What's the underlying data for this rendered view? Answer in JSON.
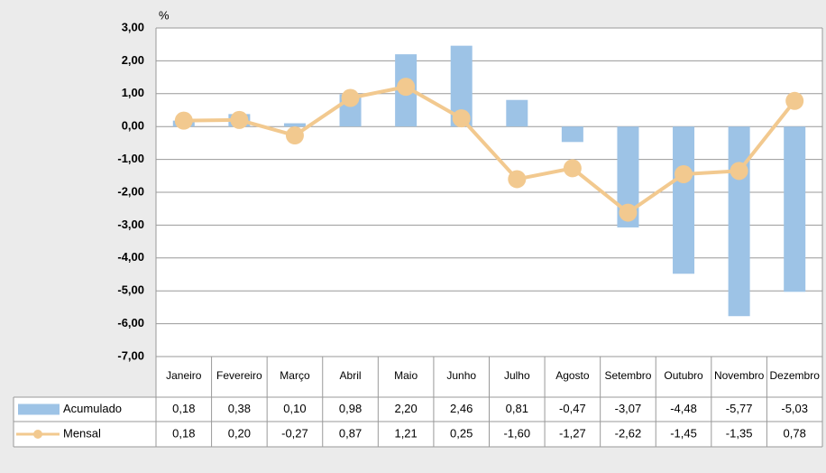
{
  "chart_data": {
    "type": "combo",
    "y_label": "%",
    "categories": [
      "Janeiro",
      "Fevereiro",
      "Março",
      "Abril",
      "Maio",
      "Junho",
      "Julho",
      "Agosto",
      "Setembro",
      "Outubro",
      "Novembro",
      "Dezembro"
    ],
    "series": [
      {
        "name": "Acumulado",
        "type": "bar",
        "color": "#9dc3e6",
        "values": [
          0.18,
          0.38,
          0.1,
          0.98,
          2.2,
          2.46,
          0.81,
          -0.47,
          -3.07,
          -4.48,
          -5.77,
          -5.03
        ],
        "value_labels": [
          "0,18",
          "0,38",
          "0,10",
          "0,98",
          "2,20",
          "2,46",
          "0,81",
          "-0,47",
          "-3,07",
          "-4,48",
          "-5,77",
          "-5,03"
        ]
      },
      {
        "name": "Mensal",
        "type": "line",
        "color": "#f2c98f",
        "values": [
          0.18,
          0.2,
          -0.27,
          0.87,
          1.21,
          0.25,
          -1.6,
          -1.27,
          -2.62,
          -1.45,
          -1.35,
          0.78
        ],
        "value_labels": [
          "0,18",
          "0,20",
          "-0,27",
          "0,87",
          "1,21",
          "0,25",
          "-1,60",
          "-1,27",
          "-2,62",
          "-1,45",
          "-1,35",
          "0,78"
        ]
      }
    ],
    "ylim": [
      -7,
      3
    ],
    "yticks": [
      {
        "value": 3,
        "label": "3,00"
      },
      {
        "value": 2,
        "label": "2,00"
      },
      {
        "value": 1,
        "label": "1,00"
      },
      {
        "value": 0,
        "label": "0,00"
      },
      {
        "value": -1,
        "label": "-1,00"
      },
      {
        "value": -2,
        "label": "-2,00"
      },
      {
        "value": -3,
        "label": "-3,00"
      },
      {
        "value": -4,
        "label": "-4,00"
      },
      {
        "value": -5,
        "label": "-5,00"
      },
      {
        "value": -6,
        "label": "-6,00"
      },
      {
        "value": -7,
        "label": "-7,00"
      }
    ],
    "grid": true
  }
}
